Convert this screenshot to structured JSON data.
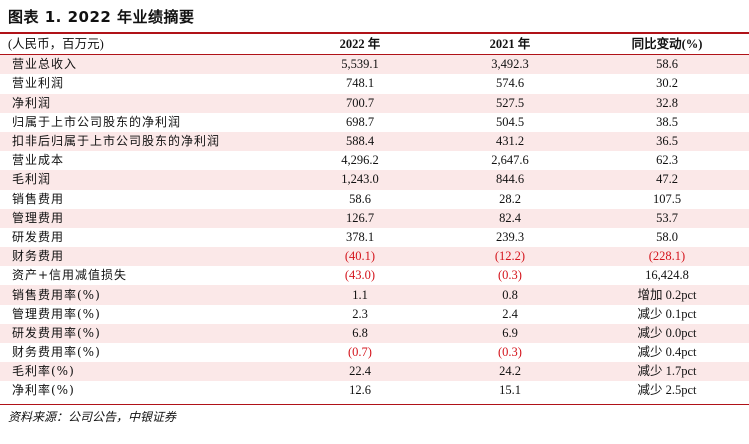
{
  "title": "图表 1. 2022 年业绩摘要",
  "header": {
    "label": "(人民币，百万元)",
    "col1": "2022 年",
    "col2": "2021 年",
    "col3": "同比变动(%)"
  },
  "rows": [
    {
      "label": "营业总收入",
      "v2022": "5,539.1",
      "v2021": "3,492.3",
      "yoy": "58.6",
      "neg2022": false,
      "neg2021": false,
      "negyoy": false,
      "shade": true
    },
    {
      "label": "营业利润",
      "v2022": "748.1",
      "v2021": "574.6",
      "yoy": "30.2",
      "neg2022": false,
      "neg2021": false,
      "negyoy": false,
      "shade": false
    },
    {
      "label": "净利润",
      "v2022": "700.7",
      "v2021": "527.5",
      "yoy": "32.8",
      "neg2022": false,
      "neg2021": false,
      "negyoy": false,
      "shade": true
    },
    {
      "label": "归属于上市公司股东的净利润",
      "v2022": "698.7",
      "v2021": "504.5",
      "yoy": "38.5",
      "neg2022": false,
      "neg2021": false,
      "negyoy": false,
      "shade": false
    },
    {
      "label": "扣非后归属于上市公司股东的净利润",
      "v2022": "588.4",
      "v2021": "431.2",
      "yoy": "36.5",
      "neg2022": false,
      "neg2021": false,
      "negyoy": false,
      "shade": true
    },
    {
      "label": "营业成本",
      "v2022": "4,296.2",
      "v2021": "2,647.6",
      "yoy": "62.3",
      "neg2022": false,
      "neg2021": false,
      "negyoy": false,
      "shade": false
    },
    {
      "label": "毛利润",
      "v2022": "1,243.0",
      "v2021": "844.6",
      "yoy": "47.2",
      "neg2022": false,
      "neg2021": false,
      "negyoy": false,
      "shade": true
    },
    {
      "label": "销售费用",
      "v2022": "58.6",
      "v2021": "28.2",
      "yoy": "107.5",
      "neg2022": false,
      "neg2021": false,
      "negyoy": false,
      "shade": false
    },
    {
      "label": "管理费用",
      "v2022": "126.7",
      "v2021": "82.4",
      "yoy": "53.7",
      "neg2022": false,
      "neg2021": false,
      "negyoy": false,
      "shade": true
    },
    {
      "label": "研发费用",
      "v2022": "378.1",
      "v2021": "239.3",
      "yoy": "58.0",
      "neg2022": false,
      "neg2021": false,
      "negyoy": false,
      "shade": false
    },
    {
      "label": "财务费用",
      "v2022": "(40.1)",
      "v2021": "(12.2)",
      "yoy": "(228.1)",
      "neg2022": true,
      "neg2021": true,
      "negyoy": true,
      "shade": true
    },
    {
      "label": "资产+信用减值损失",
      "v2022": "(43.0)",
      "v2021": "(0.3)",
      "yoy": "16,424.8",
      "neg2022": true,
      "neg2021": true,
      "negyoy": false,
      "shade": false
    },
    {
      "label": "销售费用率(%)",
      "v2022": "1.1",
      "v2021": "0.8",
      "yoy": "增加 0.2pct",
      "neg2022": false,
      "neg2021": false,
      "negyoy": false,
      "shade": true
    },
    {
      "label": "管理费用率(%)",
      "v2022": "2.3",
      "v2021": "2.4",
      "yoy": "减少 0.1pct",
      "neg2022": false,
      "neg2021": false,
      "negyoy": false,
      "shade": false
    },
    {
      "label": "研发费用率(%)",
      "v2022": "6.8",
      "v2021": "6.9",
      "yoy": "减少 0.0pct",
      "neg2022": false,
      "neg2021": false,
      "negyoy": false,
      "shade": true
    },
    {
      "label": "财务费用率(%)",
      "v2022": "(0.7)",
      "v2021": "(0.3)",
      "yoy": "减少 0.4pct",
      "neg2022": true,
      "neg2021": true,
      "negyoy": false,
      "shade": false
    },
    {
      "label": "毛利率(%)",
      "v2022": "22.4",
      "v2021": "24.2",
      "yoy": "减少 1.7pct",
      "neg2022": false,
      "neg2021": false,
      "negyoy": false,
      "shade": true
    },
    {
      "label": "净利率(%)",
      "v2022": "12.6",
      "v2021": "15.1",
      "yoy": "减少 2.5pct",
      "neg2022": false,
      "neg2021": false,
      "negyoy": false,
      "shade": false
    }
  ],
  "source": "资料来源：公司公告，中银证券",
  "colors": {
    "accent": "#b01218",
    "negative": "#d4141c",
    "shade": "#fbe8e8"
  }
}
